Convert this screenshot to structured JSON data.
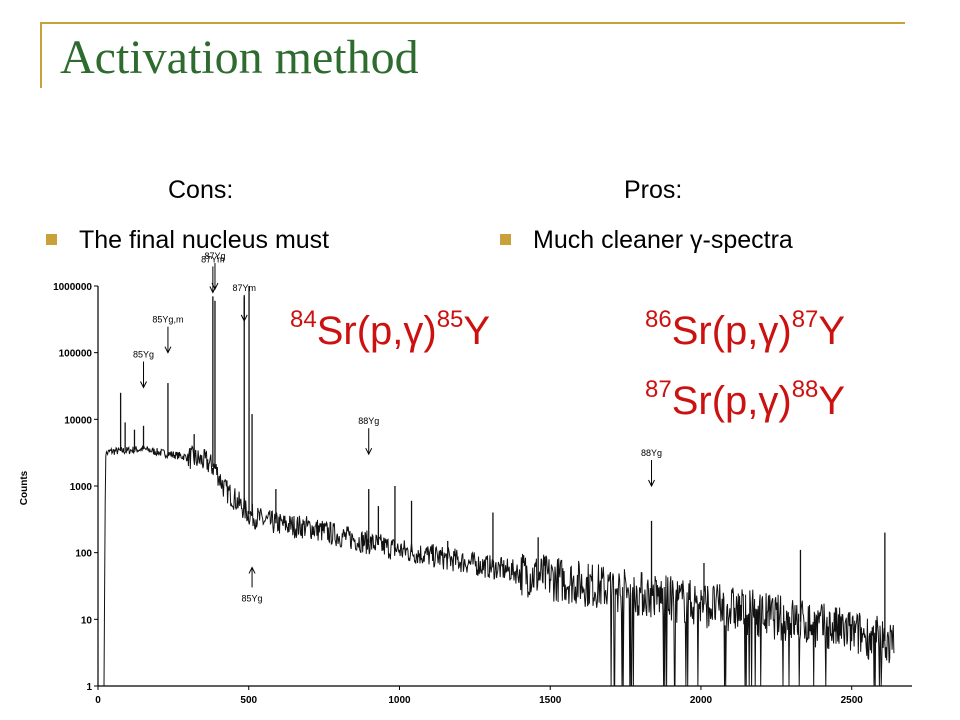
{
  "slide": {
    "title": "Activation method",
    "cons_heading": "Cons:",
    "pros_heading": "Pros:",
    "cons_items": [
      "The final nucleus must"
    ],
    "pros_items": [
      "Much cleaner γ-spectra"
    ],
    "reactions": [
      {
        "target_mass": "84",
        "text": "Sr(p,γ)",
        "product_mass": "85",
        "product": "Y"
      },
      {
        "target_mass": "86",
        "text": "Sr(p,γ)",
        "product_mass": "87",
        "product": "Y"
      },
      {
        "target_mass": "87",
        "text": "Sr(p,γ)",
        "product_mass": "88",
        "product": "Y"
      }
    ],
    "colors": {
      "title": "#2e6b2e",
      "accent": "#c8a13a",
      "reaction": "#cc1111"
    }
  },
  "chart_data": {
    "type": "line",
    "ylabel": "Counts",
    "xlim": [
      0,
      2700
    ],
    "ylim": [
      1,
      1000000
    ],
    "y_scale": "log",
    "x_ticks": [
      0,
      500,
      1000,
      1500,
      2000,
      2500
    ],
    "y_ticks": [
      {
        "value": 1000000,
        "label": "1000000"
      },
      {
        "value": 100000,
        "label": "100000"
      },
      {
        "value": 10000,
        "label": "10000"
      },
      {
        "value": 1000,
        "label": "1000"
      },
      {
        "value": 100,
        "label": "100"
      },
      {
        "value": 10,
        "label": "10"
      },
      {
        "value": 1,
        "label": "1"
      }
    ],
    "baseline": [
      [
        20,
        1
      ],
      [
        25,
        3000
      ],
      [
        40,
        3300
      ],
      [
        100,
        3400
      ],
      [
        150,
        3600
      ],
      [
        200,
        3200
      ],
      [
        300,
        2700
      ],
      [
        360,
        2300
      ],
      [
        390,
        1800
      ],
      [
        420,
        900
      ],
      [
        460,
        600
      ],
      [
        500,
        380
      ],
      [
        550,
        300
      ],
      [
        600,
        270
      ],
      [
        650,
        250
      ],
      [
        700,
        240
      ],
      [
        800,
        180
      ],
      [
        900,
        140
      ],
      [
        1000,
        110
      ],
      [
        1200,
        75
      ],
      [
        1400,
        50
      ],
      [
        1600,
        35
      ],
      [
        1800,
        24
      ],
      [
        2000,
        17
      ],
      [
        2200,
        12
      ],
      [
        2400,
        8
      ],
      [
        2600,
        5
      ],
      [
        2640,
        4
      ]
    ],
    "peaks": [
      {
        "x": 75,
        "y": 25000
      },
      {
        "x": 90,
        "y": 9000
      },
      {
        "x": 121,
        "y": 7000
      },
      {
        "x": 151,
        "y": 8000
      },
      {
        "x": 232,
        "y": 35000
      },
      {
        "x": 319,
        "y": 6000
      },
      {
        "x": 381,
        "y": 700000
      },
      {
        "x": 388,
        "y": 600000
      },
      {
        "x": 485,
        "y": 700000
      },
      {
        "x": 501,
        "y": 1000000
      },
      {
        "x": 511,
        "y": 12000
      },
      {
        "x": 590,
        "y": 900
      },
      {
        "x": 898,
        "y": 900
      },
      {
        "x": 930,
        "y": 500
      },
      {
        "x": 985,
        "y": 1000
      },
      {
        "x": 1040,
        "y": 600
      },
      {
        "x": 1160,
        "y": 150
      },
      {
        "x": 1310,
        "y": 400
      },
      {
        "x": 1460,
        "y": 170
      },
      {
        "x": 1836,
        "y": 300
      },
      {
        "x": 2010,
        "y": 70
      },
      {
        "x": 2330,
        "y": 110
      },
      {
        "x": 2610,
        "y": 200
      }
    ],
    "annotations": [
      {
        "label": "87Ym",
        "x": 381,
        "y_top": 800000
      },
      {
        "label": "87Yg",
        "x": 388,
        "y_top": 900000
      },
      {
        "label": "85Yg,m",
        "x": 232,
        "y_top": 100000
      },
      {
        "label": "87Ym",
        "x": 485,
        "y_top": 300000
      },
      {
        "label": "85Yg",
        "x": 151,
        "y_top": 30000
      },
      {
        "label": "88Yg",
        "x": 898,
        "y_top": 3000
      },
      {
        "label": "88Yg",
        "x": 1836,
        "y_top": 1000
      },
      {
        "label": "85Yg",
        "x": 511,
        "y_top": 60
      }
    ]
  }
}
